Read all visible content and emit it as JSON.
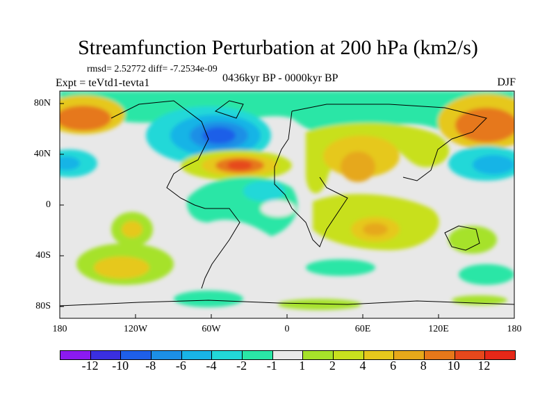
{
  "title": "Streamfunction Perturbation at 200 hPa (km2/s)",
  "stats_text": "rmsd= 2.52772  diff= -7.2534e-09",
  "experiment_text": "Expt = teVtd1-tevta1",
  "period_text": "0436kyr BP - 0000kyr BP",
  "season": "DJF",
  "lat_ticks": [
    "80N",
    "40N",
    "0",
    "40S",
    "80S"
  ],
  "lon_ticks": [
    "180",
    "120W",
    "60W",
    "0",
    "60E",
    "120E",
    "180"
  ],
  "colorbar": {
    "colors": [
      "#8B1AF0",
      "#3A2FE0",
      "#1E5FE8",
      "#1C8FE6",
      "#19B4E6",
      "#22D8D8",
      "#2AE6A6",
      "#E8E8E8",
      "#A6E22A",
      "#C8E01E",
      "#E6C81C",
      "#E6A81A",
      "#E6781A",
      "#E6481C",
      "#E62818"
    ],
    "labels": [
      "-12",
      "-10",
      "-8",
      "-6",
      "-4",
      "-2",
      "-1",
      "1",
      "2",
      "4",
      "6",
      "8",
      "10",
      "12"
    ]
  }
}
